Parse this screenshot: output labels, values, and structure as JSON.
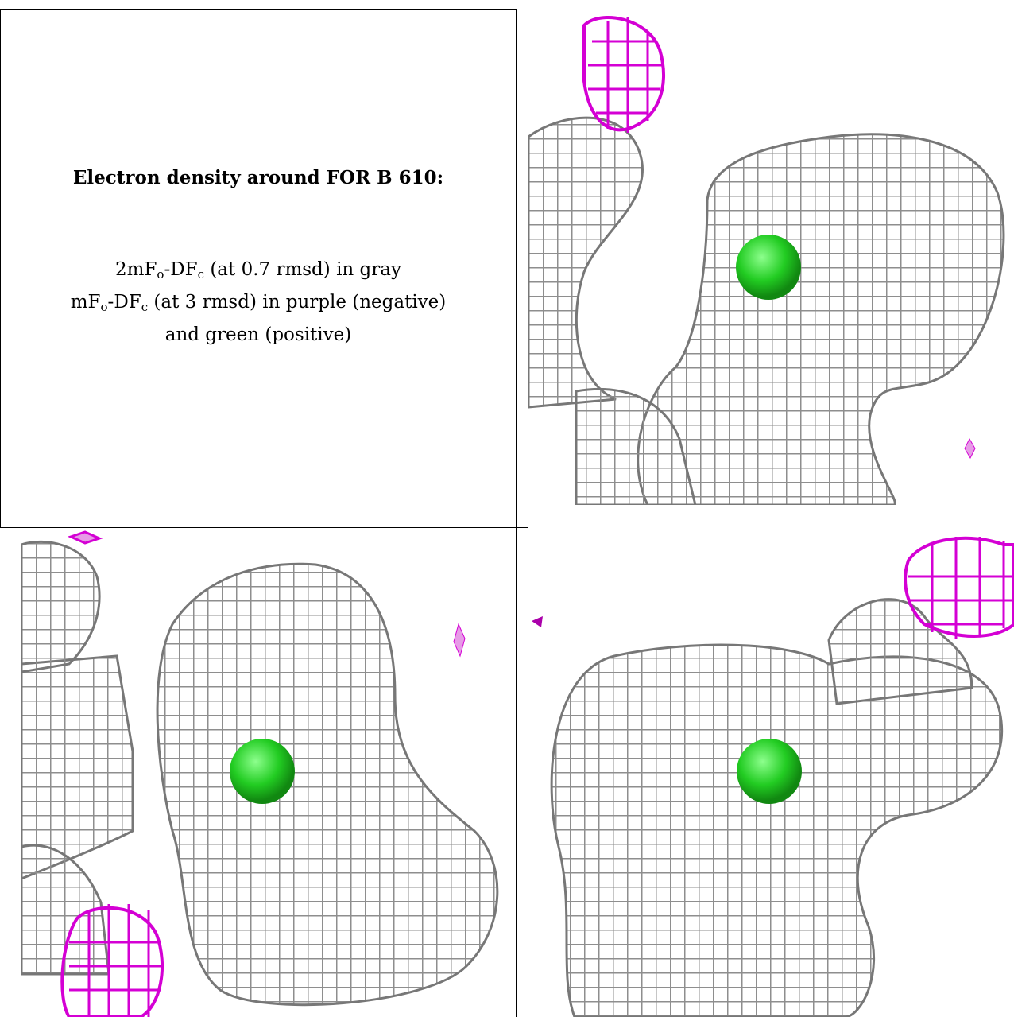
{
  "caption": {
    "title": "Electron density around FOR B 610:",
    "line1": {
      "a": "2mF",
      "s1": "o",
      "b": "-DF",
      "s2": "c",
      "c": " (at 0.7 rmsd) in gray"
    },
    "line2": {
      "a": "mF",
      "s1": "o",
      "b": "-DF",
      "s2": "c",
      "c": " (at 3 rmsd) in purple (negative)"
    },
    "line3": "and green (positive)"
  },
  "colors": {
    "map_2fofc": "#8e8e8e",
    "map_negative": "#d400d4",
    "map_positive": "#22cc22",
    "background": "#ffffff",
    "grid_line": "#000000"
  },
  "views": [
    {
      "name": "view-1",
      "icon": "electron-density-mesh"
    },
    {
      "name": "view-2",
      "icon": "electron-density-mesh"
    },
    {
      "name": "view-3",
      "icon": "electron-density-mesh"
    }
  ]
}
